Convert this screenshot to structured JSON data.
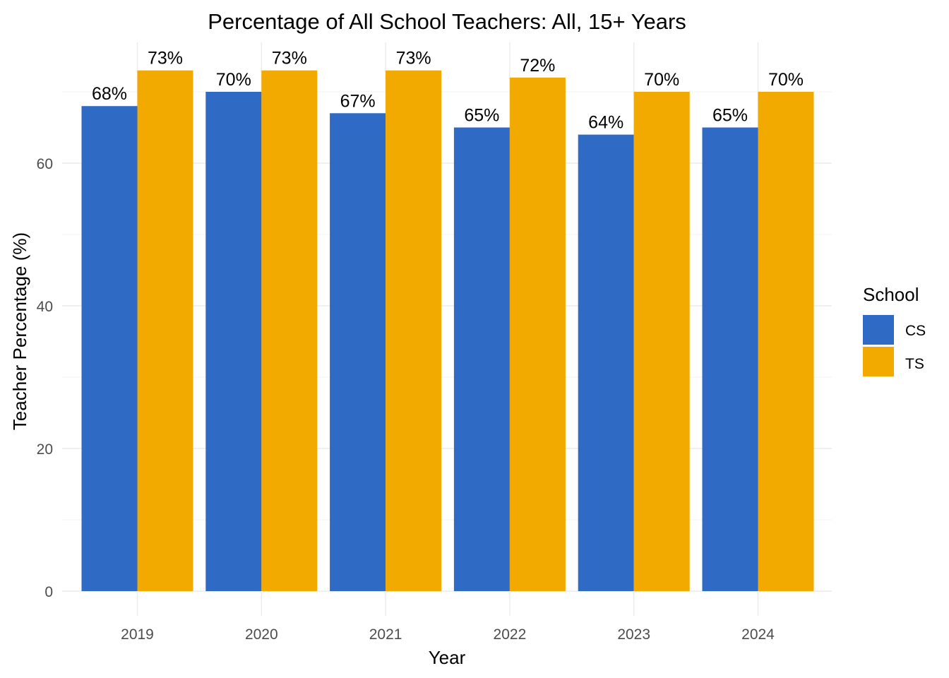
{
  "chart_data": {
    "type": "bar",
    "title": "Percentage of All School Teachers: All, 15+ Years",
    "xlabel": "Year",
    "ylabel": "Teacher Percentage (%)",
    "categories": [
      "2019",
      "2020",
      "2021",
      "2022",
      "2023",
      "2024"
    ],
    "series": [
      {
        "name": "CS",
        "color": "#2f6bc5",
        "values": [
          68,
          70,
          67,
          65,
          64,
          65
        ],
        "labels": [
          "68%",
          "70%",
          "67%",
          "65%",
          "64%",
          "65%"
        ]
      },
      {
        "name": "TS",
        "color": "#f2a900",
        "values": [
          73,
          73,
          73,
          72,
          70,
          70
        ],
        "labels": [
          "73%",
          "73%",
          "73%",
          "72%",
          "70%",
          "70%"
        ]
      }
    ],
    "ylim": [
      0,
      73
    ],
    "yticks": [
      "0",
      "20",
      "40",
      "60"
    ],
    "grid": true,
    "legend": {
      "title": "School",
      "position": "right"
    }
  }
}
